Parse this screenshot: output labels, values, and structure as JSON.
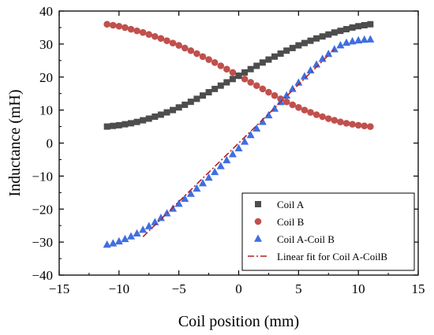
{
  "chart_data": {
    "type": "scatter",
    "xlabel": "Coil position (mm)",
    "ylabel": "Inductance (mH)",
    "xlim": [
      -15,
      15
    ],
    "ylim": [
      -40,
      40
    ],
    "xticks": [
      -15,
      -10,
      -5,
      0,
      5,
      10,
      15
    ],
    "yticks": [
      -40,
      -30,
      -20,
      -10,
      0,
      10,
      20,
      30,
      40
    ],
    "grid": false,
    "legend_position": "bottom-right",
    "x": [
      -11,
      -10.5,
      -10,
      -9.5,
      -9,
      -8.5,
      -8,
      -7.5,
      -7,
      -6.5,
      -6,
      -5.5,
      -5,
      -4.5,
      -4,
      -3.5,
      -3,
      -2.5,
      -2,
      -1.5,
      -1,
      -0.5,
      0,
      0.5,
      1,
      1.5,
      2,
      2.5,
      3,
      3.5,
      4,
      4.5,
      5,
      5.5,
      6,
      6.5,
      7,
      7.5,
      8,
      8.5,
      9,
      9.5,
      10,
      10.5,
      11
    ],
    "series": [
      {
        "name": "Coil A",
        "marker": "square",
        "color": "#4d4d4d",
        "values": [
          5.0,
          5.2,
          5.4,
          5.7,
          6.0,
          6.4,
          6.9,
          7.4,
          8.0,
          8.6,
          9.3,
          10.0,
          10.8,
          11.6,
          12.5,
          13.4,
          14.4,
          15.4,
          16.4,
          17.4,
          18.4,
          19.4,
          20.4,
          21.4,
          22.4,
          23.4,
          24.4,
          25.3,
          26.2,
          27.1,
          28.0,
          28.8,
          29.6,
          30.3,
          31.0,
          31.7,
          32.3,
          32.9,
          33.5,
          34.0,
          34.5,
          35.0,
          35.4,
          35.7,
          36.0
        ]
      },
      {
        "name": "Coil B",
        "marker": "circle",
        "color": "#c0504d",
        "values": [
          36.0,
          35.7,
          35.4,
          35.0,
          34.5,
          34.0,
          33.5,
          32.9,
          32.3,
          31.7,
          31.0,
          30.3,
          29.6,
          28.8,
          28.0,
          27.1,
          26.2,
          25.3,
          24.4,
          23.4,
          22.4,
          21.4,
          20.4,
          19.4,
          18.4,
          17.4,
          16.4,
          15.4,
          14.4,
          13.4,
          12.5,
          11.6,
          10.8,
          10.0,
          9.3,
          8.6,
          8.0,
          7.4,
          6.9,
          6.4,
          6.0,
          5.7,
          5.4,
          5.2,
          5.0
        ]
      },
      {
        "name": "Coil A-Coil B",
        "marker": "triangle",
        "color": "#3f6fe0",
        "values": [
          -30.8,
          -30.4,
          -29.8,
          -29.1,
          -28.3,
          -27.4,
          -26.3,
          -25.2,
          -24.0,
          -22.7,
          -21.3,
          -19.9,
          -18.4,
          -16.9,
          -15.4,
          -13.8,
          -12.2,
          -10.5,
          -8.8,
          -7.0,
          -5.2,
          -3.4,
          -1.6,
          0.4,
          2.4,
          4.4,
          6.4,
          8.4,
          10.4,
          12.4,
          14.4,
          16.4,
          18.3,
          20.2,
          22.0,
          23.8,
          25.5,
          27.0,
          28.4,
          29.6,
          30.4,
          30.8,
          31.1,
          31.3,
          31.4
        ]
      }
    ],
    "fit": {
      "name": "Linear fit for Coil A-CoilB",
      "style": "dash-dot",
      "color": "#b22222",
      "x": [
        -8,
        8
      ],
      "y": [
        -28.4,
        28.4
      ]
    }
  }
}
